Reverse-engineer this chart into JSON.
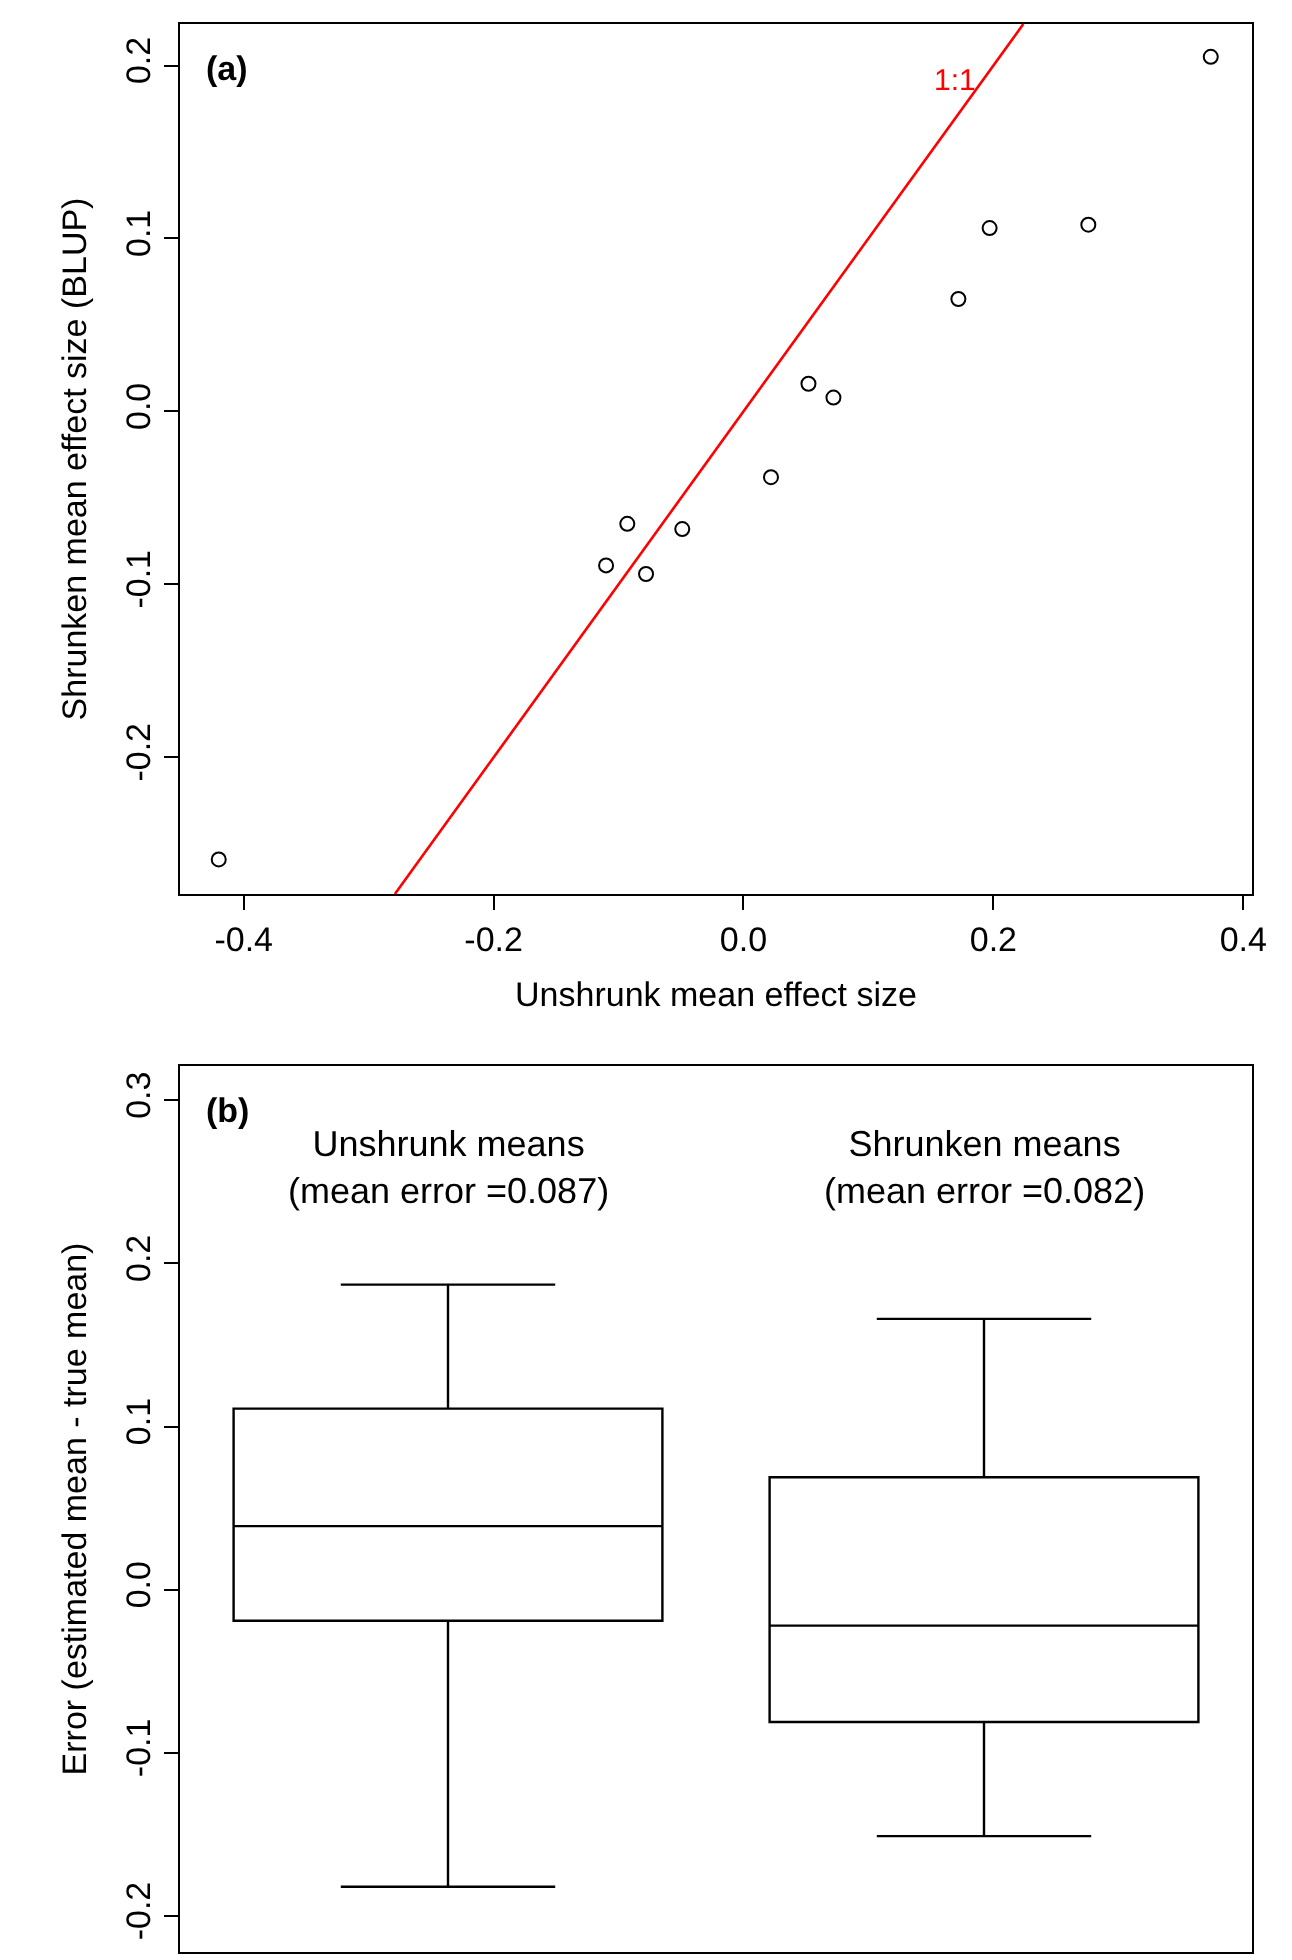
{
  "chart_data": [
    {
      "type": "scatter",
      "xlabel": "Unshrunk mean effect size",
      "ylabel": "Shrunken mean effect size (BLUP)",
      "annotations": [
        "(a)"
      ],
      "marker": "circle",
      "xlim": [
        -0.451,
        0.407
      ],
      "xticks": [
        -0.4,
        -0.2,
        {
          "value": 0,
          "label": "0.0"
        },
        0.2,
        0.4
      ],
      "ylim": [
        -0.279,
        0.224
      ],
      "yticks": [
        -0.2,
        -0.1,
        {
          "value": 0,
          "label": "0.0"
        },
        0.1,
        0.2
      ],
      "series": [
        {
          "color": "#000000",
          "x": [
            -0.42,
            -0.11,
            -0.093,
            -0.078,
            -0.049,
            0.022,
            0.052,
            0.072,
            0.172,
            0.197,
            0.276,
            0.374
          ],
          "values": [
            -0.259,
            -0.089,
            -0.065,
            -0.094,
            -0.068,
            -0.038,
            0.016,
            0.008,
            0.065,
            0.106,
            0.108,
            0.205
          ]
        },
        {
          "type": "line",
          "name": "1:1",
          "marker": "none",
          "color": "#ff0000",
          "x": [
            -0.279,
            0.224
          ],
          "values": [
            -0.279,
            0.224
          ]
        }
      ]
    },
    {
      "type": "box",
      "ylabel": "Error (estimated mean - true mean)",
      "annotations": [
        "(b)"
      ],
      "categories": [
        "Unshrunk means\n(mean error =0.087)",
        "Shrunken means\n(mean error =0.082)"
      ],
      "ylim": [
        -0.222,
        0.321
      ],
      "yticks": [
        -0.2,
        -0.1,
        {
          "value": 0,
          "label": "0.0"
        },
        0.1,
        0.2,
        0.3
      ],
      "boxes": [
        {
          "low": -0.182,
          "q1": -0.019,
          "median": 0.039,
          "q3": 0.111,
          "high": 0.187
        },
        {
          "low": -0.151,
          "q1": -0.081,
          "median": -0.022,
          "q3": 0.069,
          "high": 0.166
        }
      ]
    }
  ]
}
